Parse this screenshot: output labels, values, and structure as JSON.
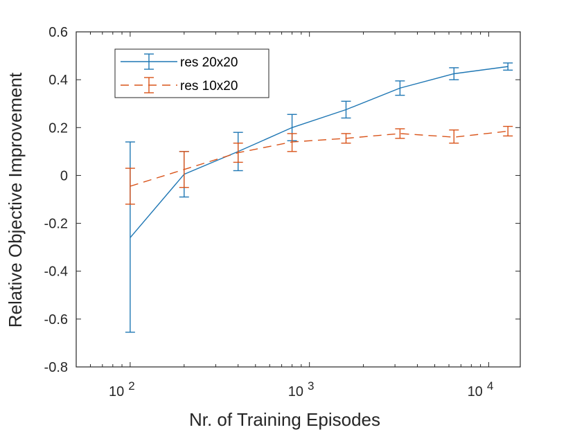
{
  "chart_data": {
    "type": "line",
    "xscale": "log",
    "xlim": [
      50,
      15000
    ],
    "ylim": [
      -0.8,
      0.6
    ],
    "xlabel": "Nr. of Training Episodes",
    "ylabel": "Relative Objective Improvement",
    "yticks": [
      -0.8,
      -0.6,
      -0.4,
      -0.2,
      0,
      0.2,
      0.4,
      0.6
    ],
    "ytick_labels": [
      "-0.8",
      "-0.6",
      "-0.4",
      "-0.2",
      "0",
      "0.2",
      "0.4",
      "0.6"
    ],
    "xticks": [
      {
        "value": 100,
        "base": "10",
        "exp": "2"
      },
      {
        "value": 1000,
        "base": "10",
        "exp": "3"
      },
      {
        "value": 10000,
        "base": "10",
        "exp": "4"
      }
    ],
    "legend_position": "top-left",
    "series": [
      {
        "name": "res 20x20",
        "color": "#1f77b4",
        "style": "solid",
        "x": [
          100,
          200,
          400,
          800,
          1600,
          3200,
          6400,
          12800
        ],
        "y": [
          -0.26,
          0.005,
          0.1,
          0.2,
          0.275,
          0.365,
          0.425,
          0.455
        ],
        "err_low": [
          -0.655,
          -0.09,
          0.02,
          0.145,
          0.24,
          0.335,
          0.4,
          0.44
        ],
        "err_high": [
          0.14,
          0.1,
          0.18,
          0.255,
          0.31,
          0.395,
          0.45,
          0.47
        ]
      },
      {
        "name": "res 10x20",
        "color": "#d95319",
        "style": "dashed",
        "x": [
          100,
          200,
          400,
          800,
          1600,
          3200,
          6400,
          12800
        ],
        "y": [
          -0.045,
          0.025,
          0.095,
          0.14,
          0.155,
          0.175,
          0.16,
          0.185
        ],
        "err_low": [
          -0.12,
          -0.05,
          0.055,
          0.1,
          0.135,
          0.155,
          0.135,
          0.165
        ],
        "err_high": [
          0.03,
          0.1,
          0.135,
          0.175,
          0.175,
          0.195,
          0.19,
          0.205
        ]
      }
    ]
  }
}
